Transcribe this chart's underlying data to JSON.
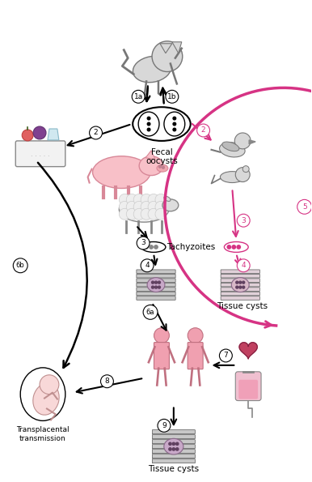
{
  "title": "",
  "bg_color": "#ffffff",
  "pink": "#d63384",
  "black": "#000000",
  "light_pink": "#f8c8d8",
  "body_pink": "#f0a0b0",
  "gray": "#888888",
  "labels": {
    "fecal_oocysts": "Fecal\noocysts",
    "tachyzoites": "Tachyzoites",
    "tissue_cysts_mid": "Tissue cysts",
    "tissue_cysts_bot": "Tissue cysts",
    "transplacental": "Transplacental\ntransmission",
    "step1a": "1a",
    "step1b": "1b",
    "step2": "2",
    "step3": "3",
    "step4": "4",
    "step5": "5",
    "step6a": "6a",
    "step6b": "6b",
    "step7": "7",
    "step8": "8",
    "step9": "9"
  }
}
